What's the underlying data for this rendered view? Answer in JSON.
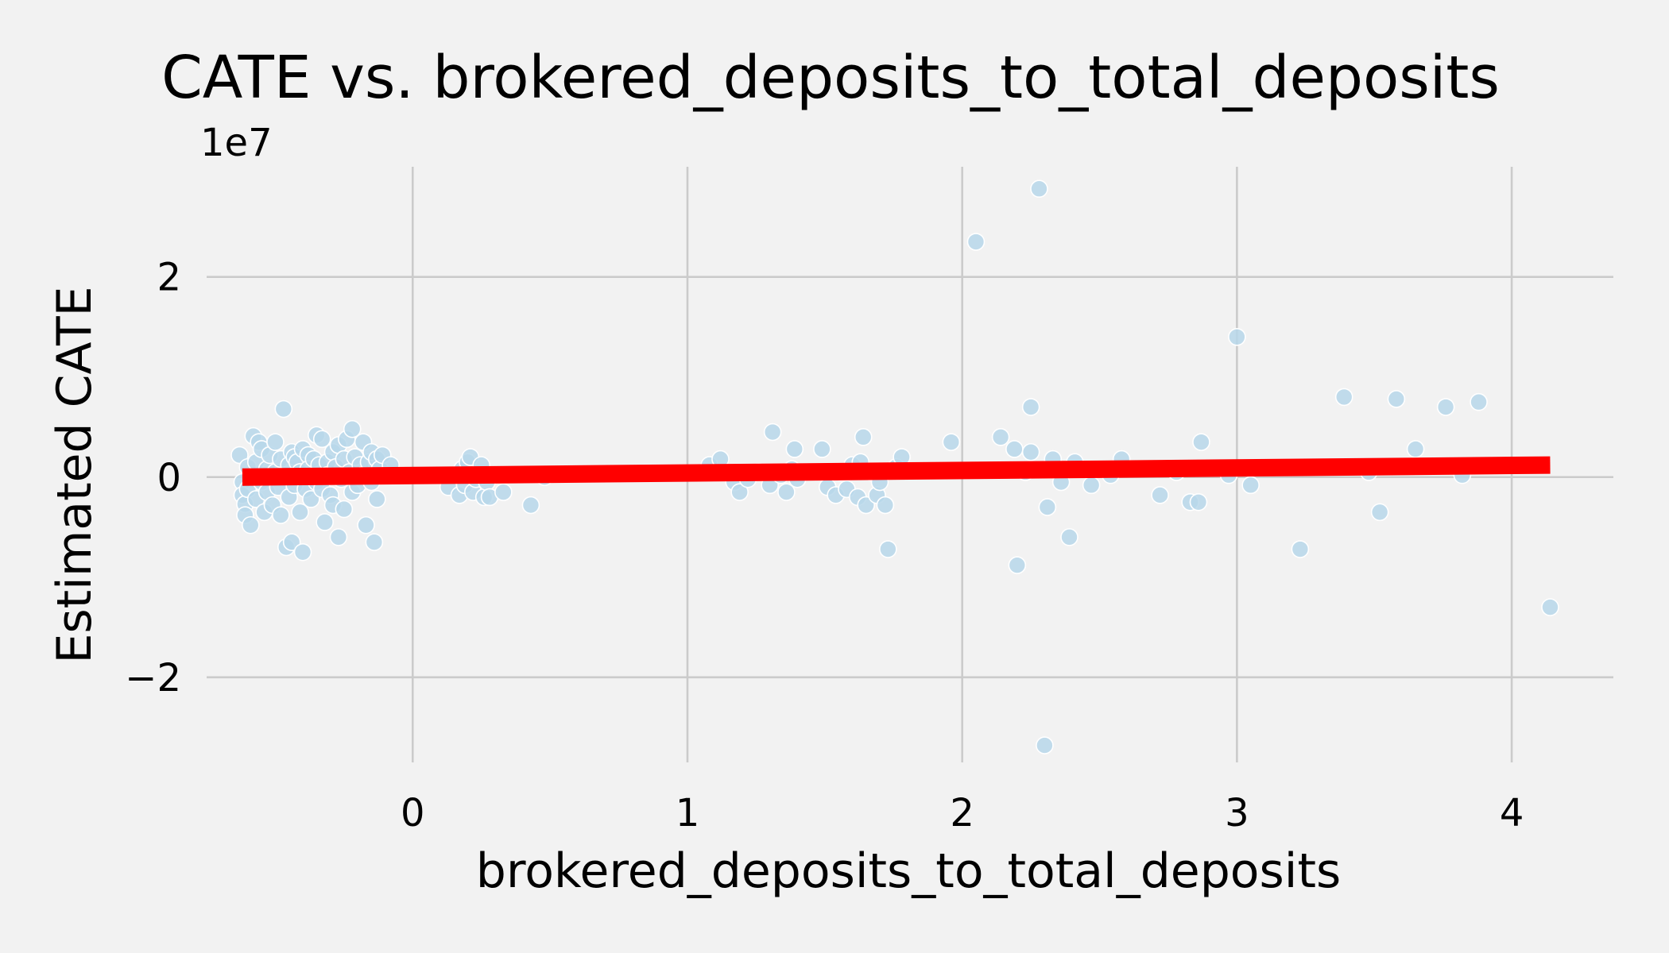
{
  "chart_data": {
    "type": "scatter",
    "title": "CATE vs. brokered_deposits_to_total_deposits",
    "xlabel": "brokered_deposits_to_total_deposits",
    "ylabel": "Estimated CATE",
    "y_offset_text": "1e7",
    "y_multiplier": 10000000,
    "xlim": [
      -0.75,
      4.37
    ],
    "ylim": [
      -2.85,
      3.1
    ],
    "x_ticks": [
      0,
      1,
      2,
      3,
      4
    ],
    "x_tick_labels": [
      "0",
      "1",
      "2",
      "3",
      "4"
    ],
    "y_ticks": [
      -2,
      0,
      2
    ],
    "y_tick_labels": [
      "−2",
      "0",
      "2"
    ],
    "grid": true,
    "point_color": "#b7d7ea",
    "line_color": "#ff0000",
    "background_color": "#f2f2f2",
    "series": [
      {
        "type": "scatter",
        "points": [
          [
            -0.63,
            0.22
          ],
          [
            -0.62,
            -0.05
          ],
          [
            -0.62,
            -0.18
          ],
          [
            -0.61,
            -0.27
          ],
          [
            -0.61,
            -0.38
          ],
          [
            -0.6,
            0.1
          ],
          [
            -0.6,
            -0.12
          ],
          [
            -0.59,
            -0.48
          ],
          [
            -0.58,
            0.41
          ],
          [
            -0.57,
            0.15
          ],
          [
            -0.57,
            -0.22
          ],
          [
            -0.56,
            0.35
          ],
          [
            -0.55,
            -0.05
          ],
          [
            -0.55,
            0.28
          ],
          [
            -0.54,
            -0.35
          ],
          [
            -0.53,
            0.08
          ],
          [
            -0.53,
            -0.15
          ],
          [
            -0.52,
            0.22
          ],
          [
            -0.51,
            -0.28
          ],
          [
            -0.5,
            0.35
          ],
          [
            -0.5,
            0.05
          ],
          [
            -0.49,
            -0.1
          ],
          [
            -0.48,
            0.18
          ],
          [
            -0.48,
            -0.38
          ],
          [
            -0.47,
            0.68
          ],
          [
            -0.46,
            -0.7
          ],
          [
            -0.46,
            0.02
          ],
          [
            -0.45,
            0.12
          ],
          [
            -0.45,
            -0.2
          ],
          [
            -0.44,
            0.25
          ],
          [
            -0.44,
            -0.65
          ],
          [
            -0.43,
            0.2
          ],
          [
            -0.43,
            -0.08
          ],
          [
            -0.42,
            0.15
          ],
          [
            -0.41,
            -0.35
          ],
          [
            -0.41,
            0.05
          ],
          [
            -0.4,
            -0.75
          ],
          [
            -0.4,
            0.28
          ],
          [
            -0.39,
            -0.12
          ],
          [
            -0.38,
            0.22
          ],
          [
            -0.38,
            0.08
          ],
          [
            -0.37,
            -0.22
          ],
          [
            -0.36,
            0.18
          ],
          [
            -0.35,
            -0.05
          ],
          [
            -0.35,
            0.42
          ],
          [
            -0.34,
            0.12
          ],
          [
            -0.33,
            -0.12
          ],
          [
            -0.33,
            0.38
          ],
          [
            -0.32,
            -0.45
          ],
          [
            -0.31,
            0.15
          ],
          [
            -0.31,
            0.02
          ],
          [
            -0.3,
            -0.18
          ],
          [
            -0.29,
            0.25
          ],
          [
            -0.29,
            -0.28
          ],
          [
            -0.28,
            0.1
          ],
          [
            -0.27,
            -0.6
          ],
          [
            -0.27,
            0.32
          ],
          [
            -0.26,
            -0.02
          ],
          [
            -0.25,
            0.18
          ],
          [
            -0.25,
            -0.32
          ],
          [
            -0.24,
            0.38
          ],
          [
            -0.23,
            0.05
          ],
          [
            -0.22,
            0.48
          ],
          [
            -0.22,
            -0.15
          ],
          [
            -0.21,
            0.2
          ],
          [
            -0.2,
            -0.08
          ],
          [
            -0.19,
            0.12
          ],
          [
            -0.18,
            0.02
          ],
          [
            -0.18,
            0.35
          ],
          [
            -0.17,
            -0.48
          ],
          [
            -0.16,
            0.15
          ],
          [
            -0.15,
            -0.05
          ],
          [
            -0.15,
            0.25
          ],
          [
            -0.14,
            -0.65
          ],
          [
            -0.13,
            0.18
          ],
          [
            -0.13,
            -0.22
          ],
          [
            -0.12,
            0.08
          ],
          [
            -0.11,
            0.22
          ],
          [
            -0.1,
            0.02
          ],
          [
            -0.08,
            0.12
          ],
          [
            0.13,
            -0.1
          ],
          [
            0.17,
            -0.18
          ],
          [
            0.18,
            0.08
          ],
          [
            0.19,
            -0.08
          ],
          [
            0.2,
            0.15
          ],
          [
            0.21,
            0.2
          ],
          [
            0.22,
            -0.15
          ],
          [
            0.23,
            -0.02
          ],
          [
            0.25,
            0.12
          ],
          [
            0.26,
            -0.2
          ],
          [
            0.27,
            -0.05
          ],
          [
            0.28,
            -0.2
          ],
          [
            0.33,
            -0.15
          ],
          [
            0.43,
            -0.28
          ],
          [
            0.48,
            0.0
          ],
          [
            1.08,
            0.12
          ],
          [
            1.12,
            0.18
          ],
          [
            1.17,
            -0.05
          ],
          [
            1.19,
            -0.15
          ],
          [
            1.22,
            -0.02
          ],
          [
            1.26,
            0.05
          ],
          [
            1.3,
            -0.08
          ],
          [
            1.31,
            0.45
          ],
          [
            1.34,
            0.02
          ],
          [
            1.36,
            -0.15
          ],
          [
            1.38,
            0.08
          ],
          [
            1.39,
            0.28
          ],
          [
            1.4,
            -0.02
          ],
          [
            1.49,
            0.28
          ],
          [
            1.51,
            -0.1
          ],
          [
            1.54,
            -0.18
          ],
          [
            1.56,
            0.05
          ],
          [
            1.58,
            -0.12
          ],
          [
            1.6,
            0.12
          ],
          [
            1.62,
            -0.2
          ],
          [
            1.63,
            0.15
          ],
          [
            1.64,
            0.4
          ],
          [
            1.65,
            -0.28
          ],
          [
            1.67,
            0.05
          ],
          [
            1.69,
            -0.18
          ],
          [
            1.7,
            -0.05
          ],
          [
            1.72,
            -0.28
          ],
          [
            1.73,
            -0.72
          ],
          [
            1.76,
            0.1
          ],
          [
            1.78,
            0.2
          ],
          [
            1.96,
            0.35
          ],
          [
            2.05,
            2.35
          ],
          [
            2.14,
            0.4
          ],
          [
            2.19,
            0.28
          ],
          [
            2.2,
            -0.88
          ],
          [
            2.23,
            0.05
          ],
          [
            2.25,
            0.25
          ],
          [
            2.25,
            0.7
          ],
          [
            2.28,
            2.88
          ],
          [
            2.3,
            -2.68
          ],
          [
            2.31,
            -0.3
          ],
          [
            2.33,
            0.18
          ],
          [
            2.36,
            -0.05
          ],
          [
            2.39,
            -0.6
          ],
          [
            2.41,
            0.15
          ],
          [
            2.47,
            -0.08
          ],
          [
            2.54,
            0.02
          ],
          [
            2.58,
            0.18
          ],
          [
            2.72,
            -0.18
          ],
          [
            2.78,
            0.05
          ],
          [
            2.83,
            -0.25
          ],
          [
            2.86,
            -0.25
          ],
          [
            2.87,
            0.35
          ],
          [
            2.97,
            0.02
          ],
          [
            3.0,
            1.4
          ],
          [
            3.05,
            -0.08
          ],
          [
            3.23,
            -0.72
          ],
          [
            3.39,
            0.8
          ],
          [
            3.48,
            0.05
          ],
          [
            3.52,
            -0.35
          ],
          [
            3.58,
            0.78
          ],
          [
            3.65,
            0.28
          ],
          [
            3.76,
            0.7
          ],
          [
            3.82,
            0.02
          ],
          [
            3.88,
            0.75
          ],
          [
            4.14,
            -1.3
          ]
        ]
      },
      {
        "type": "line",
        "points": [
          [
            -0.62,
            0.0
          ],
          [
            4.14,
            0.12
          ]
        ]
      }
    ]
  }
}
